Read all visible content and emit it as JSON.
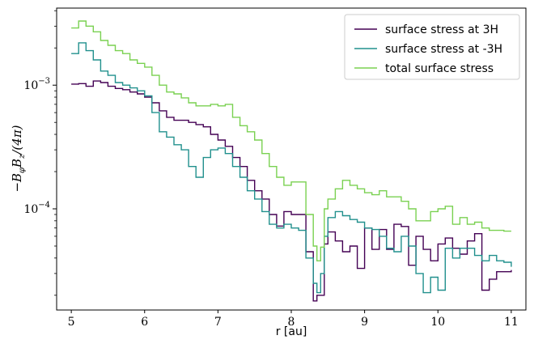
{
  "chart_data": {
    "type": "line",
    "xlabel": "r [au]",
    "ylabel": "−B_φB_z/(4π)",
    "ylabel_parts": {
      "main": "−B",
      "s1": "φ",
      "mid": "B",
      "s2": "z",
      "tail": "/(4π)"
    },
    "yscale": "log",
    "xlim": [
      4.8,
      11.2
    ],
    "ylim": [
      1.52e-05,
      0.0042
    ],
    "xticks": [
      5,
      6,
      7,
      8,
      9,
      10,
      11
    ],
    "xtick_labels": [
      "5",
      "6",
      "7",
      "8",
      "9",
      "10",
      "11"
    ],
    "yticks": [
      {
        "value": 0.001,
        "base": "10",
        "exp": "−3"
      },
      {
        "value": 0.0001,
        "base": "10",
        "exp": "−4"
      }
    ],
    "legend_position": "top-right",
    "series": [
      {
        "name": "surface stress at 3H",
        "color": "#440154",
        "x": [
          5.0,
          5.1,
          5.2,
          5.3,
          5.4,
          5.5,
          5.6,
          5.7,
          5.8,
          5.9,
          6.0,
          6.1,
          6.2,
          6.3,
          6.4,
          6.5,
          6.6,
          6.7,
          6.8,
          6.9,
          7.0,
          7.1,
          7.2,
          7.3,
          7.4,
          7.5,
          7.6,
          7.7,
          7.8,
          7.9,
          8.0,
          8.1,
          8.2,
          8.3,
          8.35,
          8.4,
          8.45,
          8.5,
          8.6,
          8.7,
          8.8,
          8.9,
          9.0,
          9.1,
          9.2,
          9.3,
          9.4,
          9.5,
          9.6,
          9.7,
          9.8,
          9.9,
          10.0,
          10.1,
          10.2,
          10.3,
          10.4,
          10.5,
          10.6,
          10.7,
          10.8,
          10.9,
          11.0
        ],
        "y": [
          0.00102,
          0.00103,
          0.00098,
          0.00108,
          0.00105,
          0.00098,
          0.00094,
          0.00092,
          0.00088,
          0.00085,
          0.0008,
          0.00072,
          0.00062,
          0.00055,
          0.00052,
          0.00052,
          0.0005,
          0.00048,
          0.00046,
          0.0004,
          0.00036,
          0.00032,
          0.00026,
          0.00022,
          0.00017,
          0.00014,
          0.00012,
          9e-05,
          7.25e-05,
          9.5e-05,
          9e-05,
          9e-05,
          4.5e-05,
          1.8e-05,
          2e-05,
          2e-05,
          5.2e-05,
          6.5e-05,
          5.5e-05,
          4.5e-05,
          5e-05,
          3.3e-05,
          7e-05,
          4.7e-05,
          6.8e-05,
          4.7e-05,
          7.5e-05,
          7.2e-05,
          3.5e-05,
          6e-05,
          4.7e-05,
          3.8e-05,
          5.2e-05,
          5.8e-05,
          4.8e-05,
          4.3e-05,
          5.5e-05,
          6.3e-05,
          2.2e-05,
          2.7e-05,
          3.1e-05,
          3.1e-05,
          3.2e-05
        ]
      },
      {
        "name": "surface stress at -3H",
        "color": "#21908d",
        "x": [
          5.0,
          5.1,
          5.2,
          5.3,
          5.4,
          5.5,
          5.6,
          5.7,
          5.8,
          5.9,
          6.0,
          6.1,
          6.2,
          6.3,
          6.4,
          6.5,
          6.6,
          6.7,
          6.8,
          6.9,
          7.0,
          7.1,
          7.2,
          7.3,
          7.4,
          7.5,
          7.6,
          7.7,
          7.8,
          7.9,
          8.0,
          8.1,
          8.2,
          8.3,
          8.35,
          8.4,
          8.45,
          8.5,
          8.6,
          8.7,
          8.8,
          8.9,
          9.0,
          9.1,
          9.2,
          9.3,
          9.4,
          9.5,
          9.6,
          9.7,
          9.8,
          9.9,
          10.0,
          10.1,
          10.2,
          10.3,
          10.4,
          10.5,
          10.6,
          10.7,
          10.8,
          10.9,
          11.0
        ],
        "y": [
          0.0018,
          0.0022,
          0.0019,
          0.0016,
          0.0013,
          0.0012,
          0.00105,
          0.001,
          0.00095,
          0.0009,
          0.00082,
          0.0006,
          0.00042,
          0.00038,
          0.00033,
          0.0003,
          0.00022,
          0.00018,
          0.00026,
          0.0003,
          0.00031,
          0.00028,
          0.00022,
          0.00018,
          0.00014,
          0.00012,
          9.5e-05,
          7.5e-05,
          7e-05,
          7.5e-05,
          7e-05,
          6.7e-05,
          4e-05,
          2.5e-05,
          2.1e-05,
          3e-05,
          6e-05,
          8.5e-05,
          9.5e-05,
          8.8e-05,
          8.2e-05,
          7.8e-05,
          7e-05,
          6.8e-05,
          6e-05,
          4.8e-05,
          4.5e-05,
          6e-05,
          5e-05,
          3e-05,
          2.1e-05,
          2.8e-05,
          2.2e-05,
          4.8e-05,
          4e-05,
          4.8e-05,
          4.8e-05,
          4.2e-05,
          3.8e-05,
          4.2e-05,
          3.8e-05,
          3.7e-05,
          3.4e-05
        ]
      },
      {
        "name": "total surface stress",
        "color": "#7ad151",
        "x": [
          5.0,
          5.1,
          5.2,
          5.3,
          5.4,
          5.5,
          5.6,
          5.7,
          5.8,
          5.9,
          6.0,
          6.1,
          6.2,
          6.3,
          6.4,
          6.5,
          6.6,
          6.7,
          6.8,
          6.9,
          7.0,
          7.1,
          7.2,
          7.3,
          7.4,
          7.5,
          7.6,
          7.7,
          7.8,
          7.9,
          8.0,
          8.1,
          8.2,
          8.3,
          8.35,
          8.4,
          8.45,
          8.5,
          8.6,
          8.7,
          8.8,
          8.9,
          9.0,
          9.1,
          9.2,
          9.3,
          9.4,
          9.5,
          9.6,
          9.7,
          9.8,
          9.9,
          10.0,
          10.1,
          10.2,
          10.3,
          10.4,
          10.5,
          10.6,
          10.7,
          10.8,
          10.9,
          11.0
        ],
        "y": [
          0.0029,
          0.0033,
          0.003,
          0.0027,
          0.0023,
          0.0021,
          0.0019,
          0.0018,
          0.0016,
          0.0015,
          0.0014,
          0.0012,
          0.001,
          0.00088,
          0.00085,
          0.00079,
          0.00072,
          0.00068,
          0.00068,
          0.0007,
          0.00068,
          0.0007,
          0.00055,
          0.00047,
          0.00042,
          0.00036,
          0.00028,
          0.00022,
          0.00018,
          0.000155,
          0.000165,
          0.000165,
          9e-05,
          5e-05,
          3.8e-05,
          4.9e-05,
          0.0001,
          0.00012,
          0.000145,
          0.00017,
          0.000155,
          0.000145,
          0.000135,
          0.00013,
          0.00014,
          0.000125,
          0.000125,
          0.000115,
          0.0001,
          8e-05,
          8e-05,
          9.5e-05,
          0.0001,
          0.000105,
          7.5e-05,
          8.5e-05,
          7.5e-05,
          7.8e-05,
          7e-05,
          6.7e-05,
          6.7e-05,
          6.6e-05,
          6.6e-05
        ]
      }
    ]
  }
}
